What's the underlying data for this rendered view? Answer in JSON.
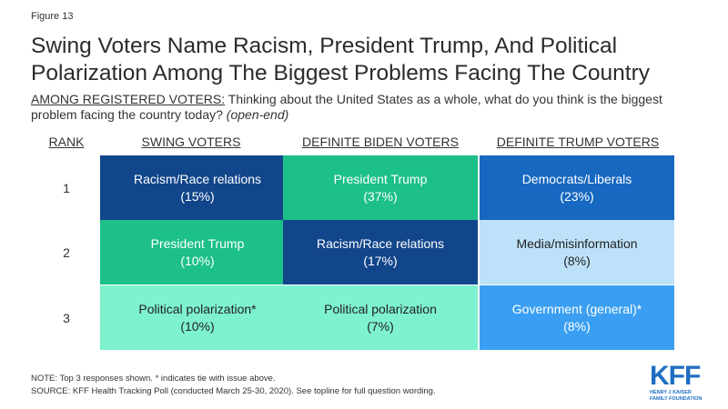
{
  "figure_label": "Figure 13",
  "title": "Swing Voters Name Racism, President Trump, And Political Polarization Among The Biggest Problems Facing The Country",
  "subtitle": {
    "lead": "AMONG REGISTERED VOTERS:",
    "question": " Thinking about the United States as a whole, what do you think is the biggest problem facing the country today? ",
    "note": "(open-end)"
  },
  "chart_data": {
    "type": "table",
    "columns": [
      "RANK",
      "SWING VOTERS",
      "DEFINITE BIDEN VOTERS",
      "DEFINITE TRUMP VOTERS"
    ],
    "rows": [
      {
        "rank": "1",
        "cells": [
          {
            "label": "Racism/Race relations",
            "value": "(15%)",
            "pct": 15,
            "color": "#12468b"
          },
          {
            "label": "President Trump",
            "value": "(37%)",
            "pct": 37,
            "color": "#1cc088"
          },
          {
            "label": "Democrats/Liberals",
            "value": "(23%)",
            "pct": 23,
            "color": "#1768c0"
          }
        ]
      },
      {
        "rank": "2",
        "cells": [
          {
            "label": "President Trump",
            "value": "(10%)",
            "pct": 10,
            "color": "#1cc088"
          },
          {
            "label": "Racism/Race relations",
            "value": "(17%)",
            "pct": 17,
            "color": "#12468b"
          },
          {
            "label": "Media/misinformation",
            "value": "(8%)",
            "pct": 8,
            "color": "#bde1f8"
          }
        ]
      },
      {
        "rank": "3",
        "cells": [
          {
            "label": "Political polarization*",
            "value": "(10%)",
            "pct": 10,
            "color": "#7ef2cf"
          },
          {
            "label": "Political polarization",
            "value": "(7%)",
            "pct": 7,
            "color": "#7ef2cf"
          },
          {
            "label": "Government (general)*",
            "value": "(8%)",
            "pct": 8,
            "color": "#3a9ff2"
          }
        ]
      }
    ]
  },
  "footnotes": {
    "note": "NOTE: Top 3 responses shown. * indicates tie with issue above.",
    "source": "SOURCE: KFF Health Tracking Poll (conducted March 25-30, 2020). See topline for full question wording."
  },
  "logo": {
    "text": "KFF",
    "tagline_1": "HENRY J KAISER",
    "tagline_2": "FAMILY FOUNDATION",
    "color": "#1f6fc1"
  }
}
